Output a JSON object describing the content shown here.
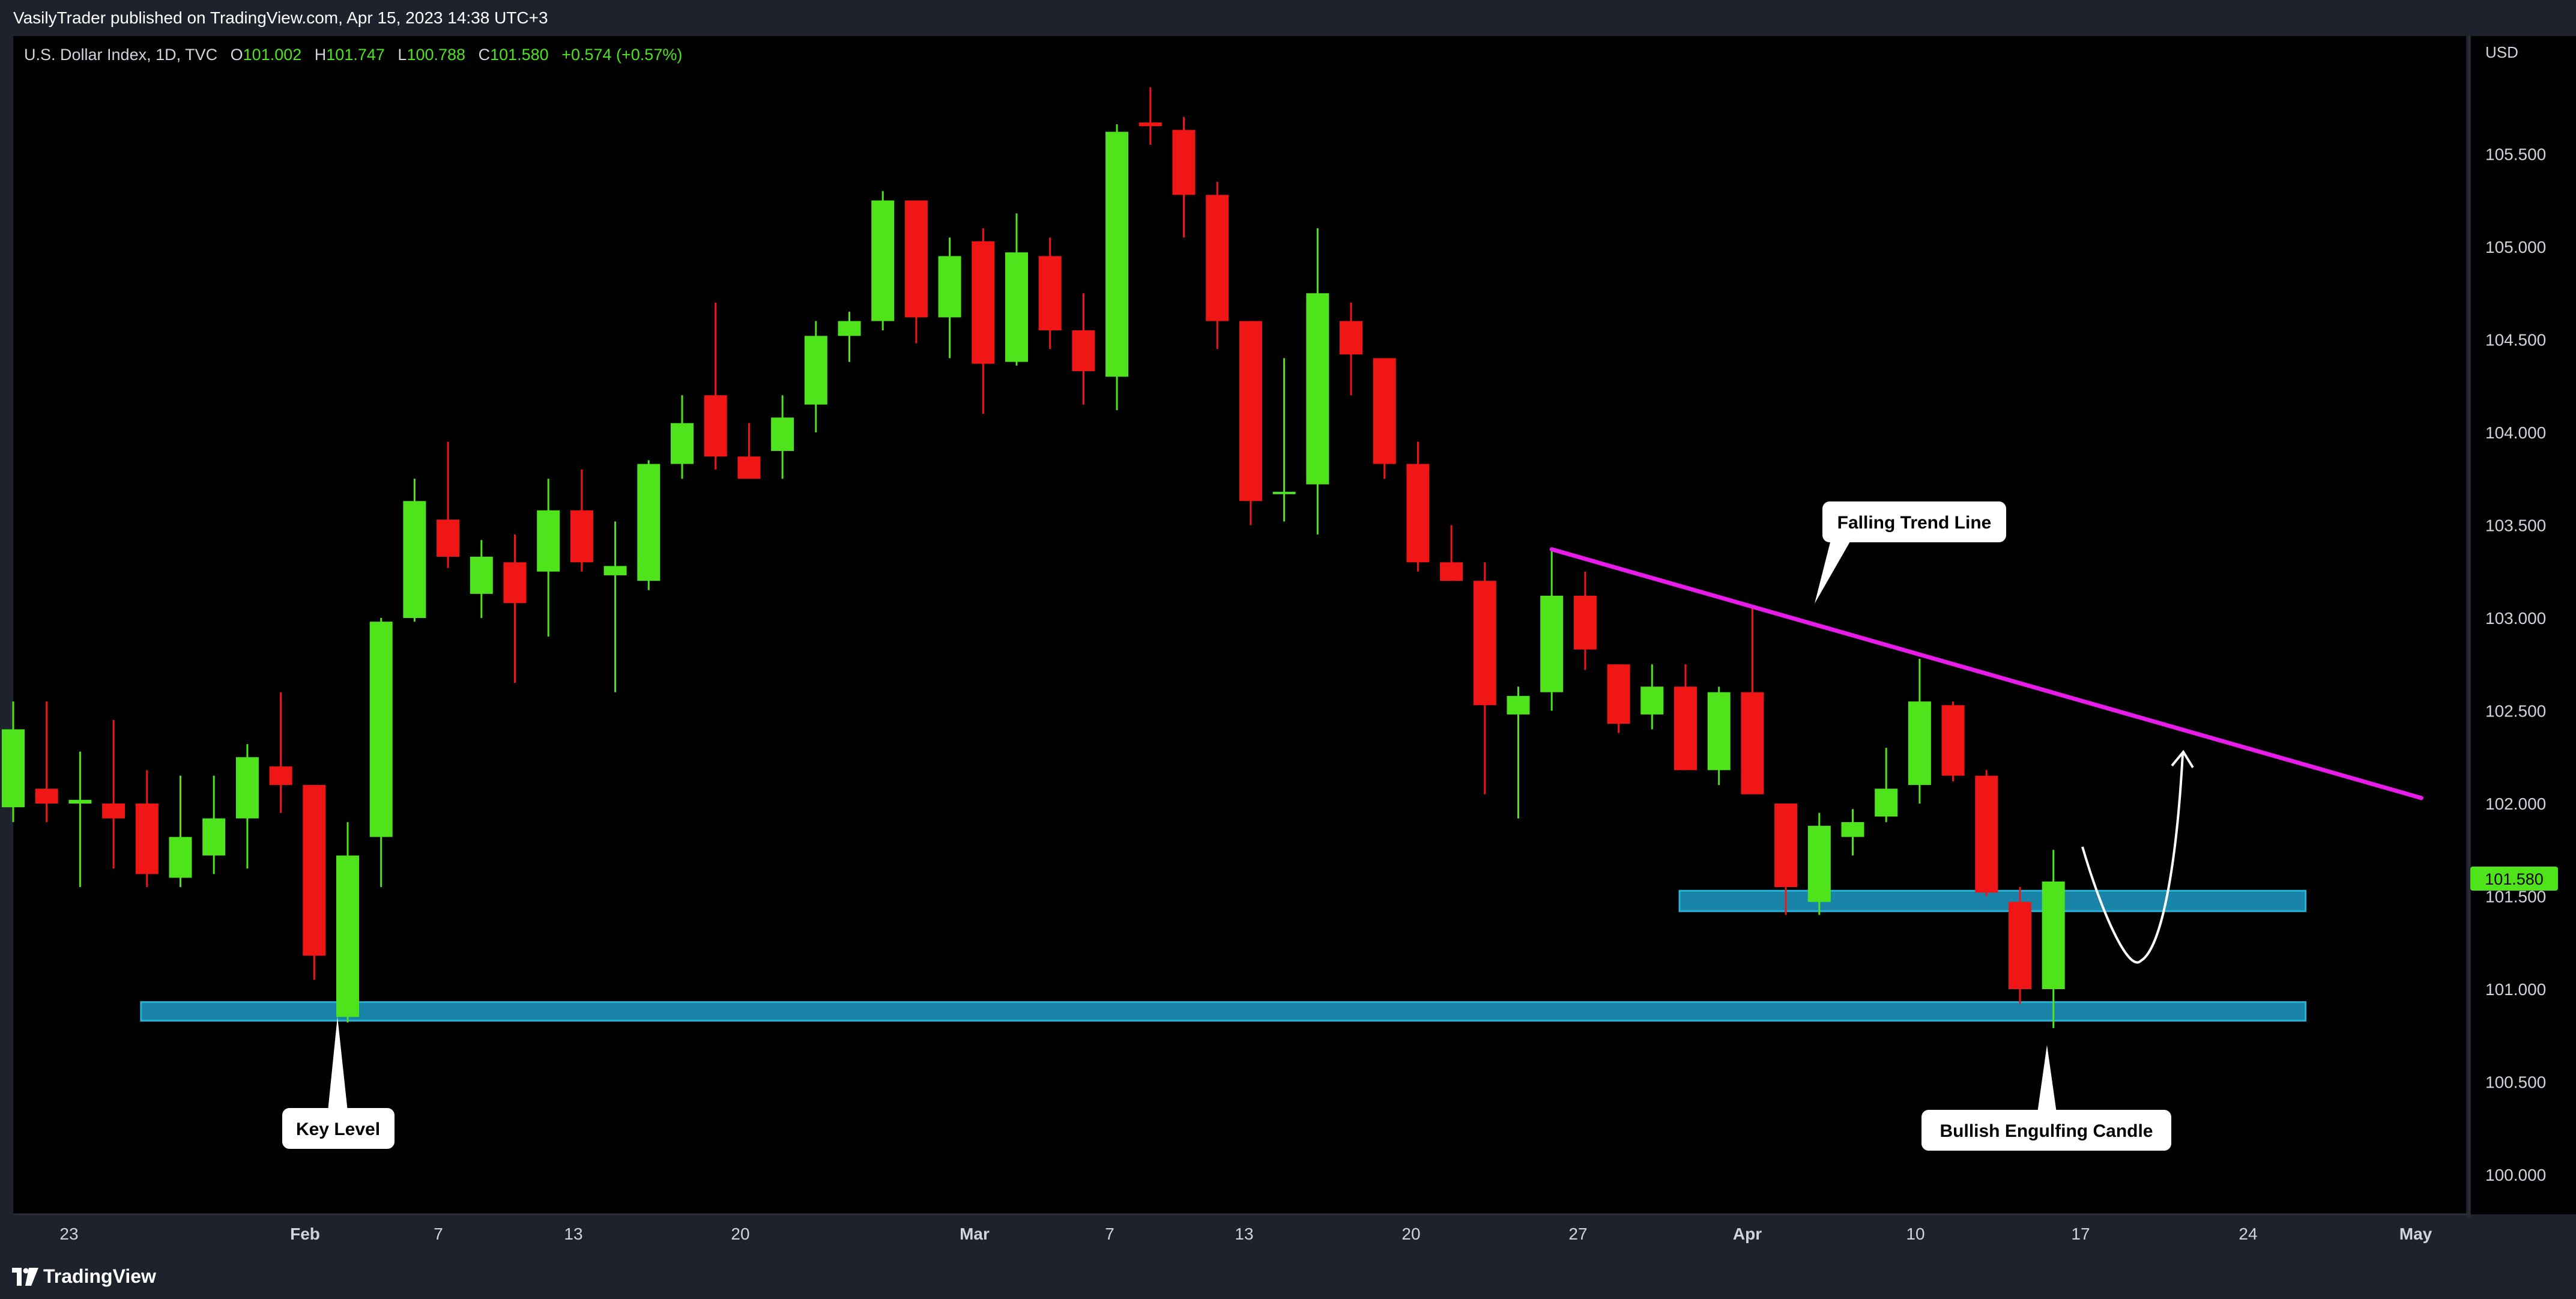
{
  "header": {
    "publisher_text": "VasilyTrader published on TradingView.com, Apr 15, 2023 14:38 UTC+3"
  },
  "legend": {
    "symbol": "U.S. Dollar Index, 1D, TVC",
    "o_label": "O",
    "o_value": "101.002",
    "h_label": "H",
    "h_value": "101.747",
    "l_label": "L",
    "l_value": "100.788",
    "c_label": "C",
    "c_value": "101.580",
    "change": "+0.574 (+0.57%)"
  },
  "footer": {
    "brand": "TradingView"
  },
  "colors": {
    "background": "#000000",
    "panel": "#1e222d",
    "up": "#4fe31b",
    "down": "#f01616",
    "trendline": "#e81ce8",
    "zone_fill": "#1a84a8",
    "zone_border": "#26b1d6",
    "price_badge": "#4fe31b"
  },
  "chart_data": {
    "type": "candlestick",
    "title": "U.S. Dollar Index, 1D, TVC",
    "currency_label": "USD",
    "y_ticks": [
      "100.000",
      "100.500",
      "101.000",
      "101.500",
      "102.000",
      "102.500",
      "103.000",
      "103.500",
      "104.000",
      "104.500",
      "105.000",
      "105.500"
    ],
    "x_ticks": [
      "23",
      "Feb",
      "7",
      "13",
      "20",
      "Mar",
      "7",
      "13",
      "20",
      "27",
      "Apr",
      "10",
      "17",
      "24",
      "May"
    ],
    "last_price": "101.580",
    "ylim": [
      99.75,
      106.15
    ],
    "candles": [
      {
        "o": 101.98,
        "h": 102.55,
        "l": 101.9,
        "c": 102.4
      },
      {
        "o": 102.08,
        "h": 102.55,
        "l": 101.9,
        "c": 102.0
      },
      {
        "o": 102.0,
        "h": 102.28,
        "l": 101.55,
        "c": 102.02
      },
      {
        "o": 102.0,
        "h": 102.45,
        "l": 101.65,
        "c": 101.92
      },
      {
        "o": 102.0,
        "h": 102.18,
        "l": 101.55,
        "c": 101.62
      },
      {
        "o": 101.6,
        "h": 102.15,
        "l": 101.55,
        "c": 101.82
      },
      {
        "o": 101.72,
        "h": 102.15,
        "l": 101.62,
        "c": 101.92
      },
      {
        "o": 101.92,
        "h": 102.32,
        "l": 101.65,
        "c": 102.25
      },
      {
        "o": 102.2,
        "h": 102.6,
        "l": 101.95,
        "c": 102.1
      },
      {
        "o": 102.1,
        "h": 102.1,
        "l": 101.05,
        "c": 101.18
      },
      {
        "o": 100.85,
        "h": 101.9,
        "l": 100.82,
        "c": 101.72
      },
      {
        "o": 101.82,
        "h": 103.0,
        "l": 101.55,
        "c": 102.98
      },
      {
        "o": 103.0,
        "h": 103.75,
        "l": 102.98,
        "c": 103.63
      },
      {
        "o": 103.53,
        "h": 103.95,
        "l": 103.27,
        "c": 103.33
      },
      {
        "o": 103.13,
        "h": 103.42,
        "l": 103.0,
        "c": 103.33
      },
      {
        "o": 103.3,
        "h": 103.45,
        "l": 102.65,
        "c": 103.08
      },
      {
        "o": 103.25,
        "h": 103.75,
        "l": 102.9,
        "c": 103.58
      },
      {
        "o": 103.58,
        "h": 103.8,
        "l": 103.25,
        "c": 103.3
      },
      {
        "o": 103.23,
        "h": 103.52,
        "l": 102.6,
        "c": 103.28
      },
      {
        "o": 103.2,
        "h": 103.85,
        "l": 103.15,
        "c": 103.83
      },
      {
        "o": 103.83,
        "h": 104.2,
        "l": 103.75,
        "c": 104.05
      },
      {
        "o": 104.2,
        "h": 104.7,
        "l": 103.8,
        "c": 103.87
      },
      {
        "o": 103.87,
        "h": 104.05,
        "l": 103.8,
        "c": 103.75
      },
      {
        "o": 103.9,
        "h": 104.2,
        "l": 103.75,
        "c": 104.08
      },
      {
        "o": 104.15,
        "h": 104.6,
        "l": 104.0,
        "c": 104.52
      },
      {
        "o": 104.52,
        "h": 104.65,
        "l": 104.38,
        "c": 104.6
      },
      {
        "o": 104.6,
        "h": 105.3,
        "l": 104.55,
        "c": 105.25
      },
      {
        "o": 105.25,
        "h": 105.25,
        "l": 104.48,
        "c": 104.62
      },
      {
        "o": 104.62,
        "h": 105.05,
        "l": 104.4,
        "c": 104.95
      },
      {
        "o": 105.03,
        "h": 105.1,
        "l": 104.1,
        "c": 104.37
      },
      {
        "o": 104.38,
        "h": 105.18,
        "l": 104.36,
        "c": 104.97
      },
      {
        "o": 104.95,
        "h": 105.05,
        "l": 104.45,
        "c": 104.55
      },
      {
        "o": 104.55,
        "h": 104.75,
        "l": 104.15,
        "c": 104.33
      },
      {
        "o": 104.3,
        "h": 105.66,
        "l": 104.12,
        "c": 105.62
      },
      {
        "o": 105.67,
        "h": 105.86,
        "l": 105.55,
        "c": 105.65
      },
      {
        "o": 105.63,
        "h": 105.7,
        "l": 105.05,
        "c": 105.28
      },
      {
        "o": 105.28,
        "h": 105.35,
        "l": 104.45,
        "c": 104.6
      },
      {
        "o": 104.6,
        "h": 104.6,
        "l": 103.5,
        "c": 103.63
      },
      {
        "o": 103.67,
        "h": 104.4,
        "l": 103.52,
        "c": 103.68
      },
      {
        "o": 103.72,
        "h": 105.1,
        "l": 103.45,
        "c": 104.75
      },
      {
        "o": 104.6,
        "h": 104.7,
        "l": 104.2,
        "c": 104.42
      },
      {
        "o": 104.4,
        "h": 104.4,
        "l": 103.75,
        "c": 103.83
      },
      {
        "o": 103.83,
        "h": 103.95,
        "l": 103.25,
        "c": 103.3
      },
      {
        "o": 103.3,
        "h": 103.5,
        "l": 103.2,
        "c": 103.2
      },
      {
        "o": 103.2,
        "h": 103.3,
        "l": 102.05,
        "c": 102.53
      },
      {
        "o": 102.48,
        "h": 102.63,
        "l": 101.92,
        "c": 102.58
      },
      {
        "o": 102.6,
        "h": 103.38,
        "l": 102.5,
        "c": 103.12
      },
      {
        "o": 103.12,
        "h": 103.25,
        "l": 102.72,
        "c": 102.83
      },
      {
        "o": 102.75,
        "h": 102.75,
        "l": 102.38,
        "c": 102.43
      },
      {
        "o": 102.48,
        "h": 102.75,
        "l": 102.4,
        "c": 102.63
      },
      {
        "o": 102.63,
        "h": 102.75,
        "l": 102.18,
        "c": 102.18
      },
      {
        "o": 102.18,
        "h": 102.63,
        "l": 102.1,
        "c": 102.6
      },
      {
        "o": 102.6,
        "h": 103.05,
        "l": 102.05,
        "c": 102.05
      },
      {
        "o": 102.0,
        "h": 102.0,
        "l": 101.4,
        "c": 101.55
      },
      {
        "o": 101.47,
        "h": 101.95,
        "l": 101.4,
        "c": 101.88
      },
      {
        "o": 101.82,
        "h": 101.97,
        "l": 101.72,
        "c": 101.9
      },
      {
        "o": 101.93,
        "h": 102.3,
        "l": 101.9,
        "c": 102.08
      },
      {
        "o": 102.1,
        "h": 102.78,
        "l": 102.0,
        "c": 102.55
      },
      {
        "o": 102.53,
        "h": 102.55,
        "l": 102.12,
        "c": 102.15
      },
      {
        "o": 102.15,
        "h": 102.18,
        "l": 101.5,
        "c": 101.52
      },
      {
        "o": 101.47,
        "h": 101.55,
        "l": 100.92,
        "c": 101.0
      },
      {
        "o": 101.0,
        "h": 101.75,
        "l": 100.79,
        "c": 101.58
      }
    ],
    "zones": [
      {
        "from_index": 4,
        "to_index": 68,
        "y_low": 100.83,
        "y_high": 100.93
      },
      {
        "from_index": 50,
        "to_index": 68,
        "y_low": 101.42,
        "y_high": 101.53
      }
    ],
    "trend_line": {
      "label": "Falling Trend Line",
      "start_index": 46,
      "start_y": 103.37,
      "end_index": 72,
      "end_y": 102.03
    },
    "annotations": [
      {
        "text": "Key Level"
      },
      {
        "text": "Bullish Engulfing Candle"
      },
      {
        "text": "Falling Trend Line"
      }
    ]
  }
}
